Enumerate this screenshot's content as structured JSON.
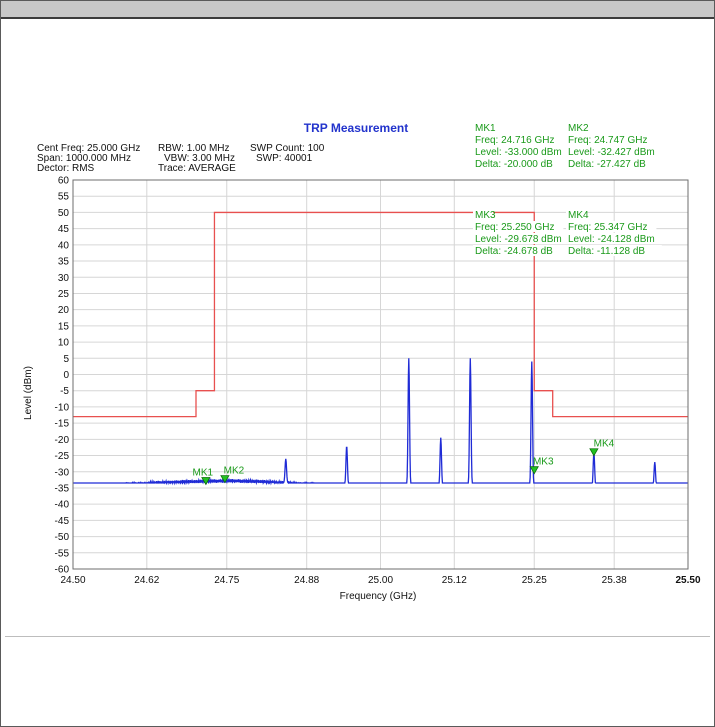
{
  "colors": {
    "trace": "#1f2bd6",
    "mask": "#e8504f",
    "marker_text": "#1a9a1a",
    "marker_fill": "#22c222",
    "title": "#2233cc",
    "grid": "#d6d6d6"
  },
  "chart_data": {
    "type": "line",
    "title": "TRP Measurement",
    "xlabel": "Frequency (GHz)",
    "ylabel": "Level (dBm)",
    "xlim": [
      24.5,
      25.5
    ],
    "ylim": [
      -60,
      60
    ],
    "x_ticks": [
      "24.50",
      "24.62",
      "24.75",
      "24.88",
      "25.00",
      "25.12",
      "25.25",
      "25.38",
      "25.50"
    ],
    "y_ticks": [
      "60",
      "55",
      "50",
      "45",
      "40",
      "35",
      "30",
      "25",
      "20",
      "15",
      "10",
      "5",
      "0",
      "-5",
      "-10",
      "-15",
      "-20",
      "-25",
      "-30",
      "-35",
      "-40",
      "-45",
      "-50",
      "-55",
      "-60"
    ],
    "grid": true,
    "settings": [
      "Cent Freq: 25.000 GHz",
      "Span: 1000.000 MHz",
      "Dector: RMS",
      "RBW: 1.00 MHz",
      "VBW: 3.00 MHz",
      "Trace: AVERAGE",
      "SWP Count: 100",
      "SWP: 40001"
    ],
    "series": [
      {
        "x": [
          24.5,
          24.55,
          24.6,
          24.65,
          24.7,
          24.75,
          24.8,
          24.85,
          24.9,
          24.95,
          25.0,
          25.05,
          25.1,
          25.15,
          25.2,
          25.25,
          25.3,
          25.35,
          25.4,
          25.45,
          25.5
        ],
        "y": [
          -35,
          -34.3,
          -33.8,
          -33.3,
          -33,
          -32.8,
          -33,
          -33.5,
          -34,
          -34.5,
          -34.8,
          -34.9,
          -35,
          -35,
          -35,
          -35,
          -35,
          -35,
          -35,
          -35,
          -35
        ],
        "peaks": [
          {
            "x": 24.846,
            "y": -26
          },
          {
            "x": 24.945,
            "y": -22
          },
          {
            "x": 25.046,
            "y": 5
          },
          {
            "x": 25.098,
            "y": -19.5
          },
          {
            "x": 25.146,
            "y": 5
          },
          {
            "x": 25.246,
            "y": 4
          },
          {
            "x": 25.347,
            "y": -24
          },
          {
            "x": 25.446,
            "y": -27
          }
        ]
      },
      {
        "mask": true,
        "x": [
          24.5,
          24.7,
          24.7,
          24.73,
          24.73,
          25.25,
          25.25,
          25.28,
          25.28,
          25.5
        ],
        "y": [
          -13,
          -13,
          -5,
          -5,
          50,
          50,
          -5,
          -5,
          -13,
          -13
        ]
      }
    ],
    "markers": [
      {
        "name": "MK1",
        "x": 24.716,
        "y": -33.0,
        "freq": "Freq: 24.716 GHz",
        "level": "Level: -33.000 dBm",
        "delta": "Delta: -20.000 dB"
      },
      {
        "name": "MK2",
        "x": 24.747,
        "y": -32.427,
        "freq": "Freq: 24.747 GHz",
        "level": "Level: -32.427 dBm",
        "delta": "Delta: -27.427 dB"
      },
      {
        "name": "MK3",
        "x": 25.25,
        "y": -29.678,
        "freq": "Freq: 25.250 GHz",
        "level": "Level: -29.678 dBm",
        "delta": "Delta: -24.678 dB"
      },
      {
        "name": "MK4",
        "x": 25.347,
        "y": -24.128,
        "freq": "Freq: 25.347 GHz",
        "level": "Level: -24.128 dBm",
        "delta": "Delta: -11.128 dB"
      }
    ]
  }
}
